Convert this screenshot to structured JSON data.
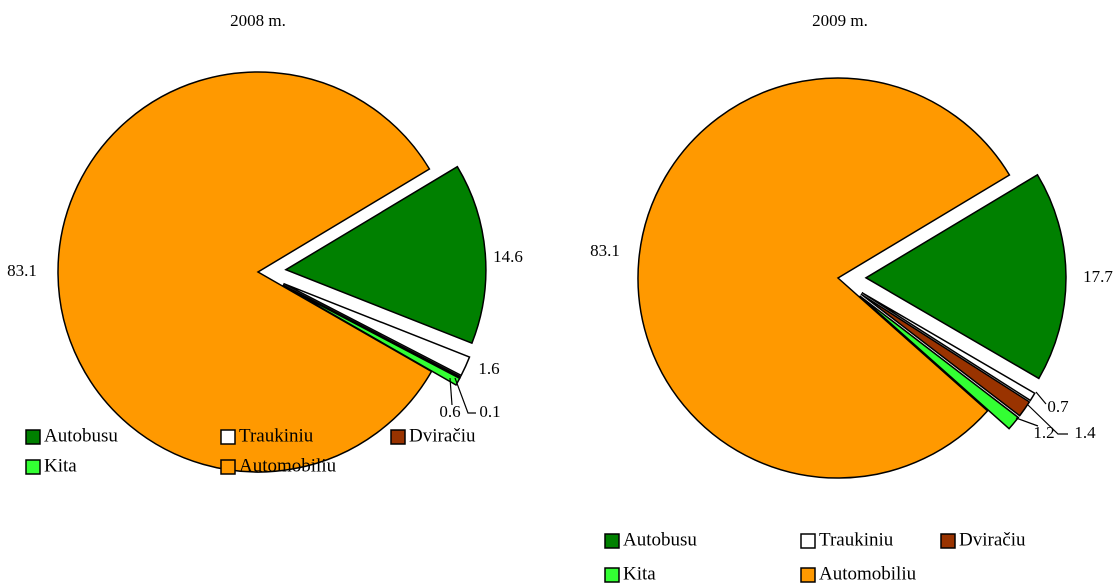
{
  "chart_data": [
    {
      "type": "pie",
      "title": "2008 m.",
      "categories": [
        "Autobusu",
        "Traukiniu",
        "Dviračiu",
        "Kita",
        "Automobiliu"
      ],
      "values": [
        14.6,
        1.6,
        0.1,
        0.6,
        83.1
      ],
      "colors": [
        "#008000",
        "#ffffff",
        "#993300",
        "#33ff33",
        "#ff9900"
      ]
    },
    {
      "type": "pie",
      "title": "2009 m.",
      "categories": [
        "Autobusu",
        "Traukiniu",
        "Dviračiu",
        "Kita",
        "Automobiliu"
      ],
      "values": [
        17.7,
        0.7,
        1.4,
        1.2,
        83.1
      ],
      "colors": [
        "#008000",
        "#ffffff",
        "#993300",
        "#33ff33",
        "#ff9900"
      ]
    }
  ]
}
